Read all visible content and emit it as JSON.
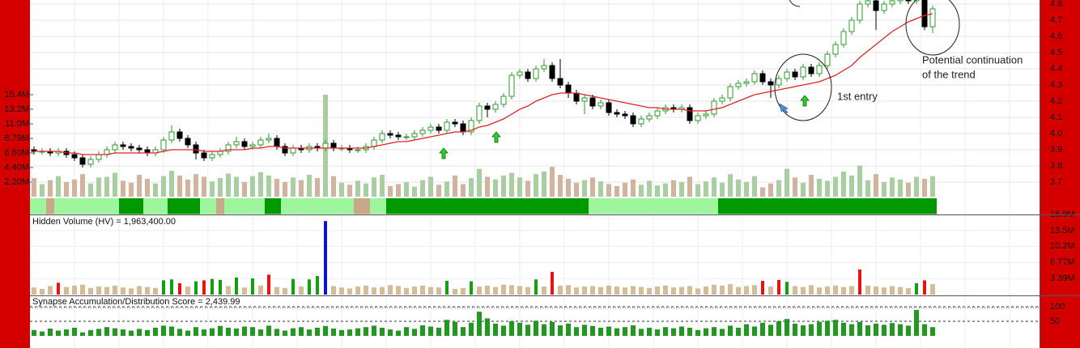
{
  "chart_data": {
    "type": "candlestick",
    "open": [
      3.9,
      3.89,
      3.89,
      3.88,
      3.89,
      3.87,
      3.85,
      3.81,
      3.84,
      3.87,
      3.9,
      3.93,
      3.92,
      3.91,
      3.9,
      3.88,
      3.9,
      3.96,
      4.01,
      3.97,
      3.93,
      3.88,
      3.85,
      3.87,
      3.89,
      3.93,
      3.95,
      3.92,
      3.93,
      3.96,
      3.97,
      3.92,
      3.88,
      3.91,
      3.9,
      3.92,
      3.91,
      3.94,
      3.91,
      3.91,
      3.9,
      3.9,
      3.92,
      3.96,
      4.0,
      3.99,
      3.98,
      3.98,
      4.0,
      4.02,
      4.04,
      4.02,
      4.07,
      4.06,
      4.01,
      4.08,
      4.17,
      4.15,
      4.18,
      4.23,
      4.36,
      4.38,
      4.34,
      4.4,
      4.42,
      4.34,
      4.3,
      4.25,
      4.2,
      4.22,
      4.17,
      4.19,
      4.13,
      4.12,
      4.11,
      4.06,
      4.09,
      4.11,
      4.14,
      4.16,
      4.15,
      4.16,
      4.08,
      4.11,
      4.12,
      4.2,
      4.22,
      4.29,
      4.31,
      4.32,
      4.37,
      4.32,
      4.3,
      4.34,
      4.38,
      4.35,
      4.41,
      4.37,
      4.42,
      4.49,
      4.55,
      4.63,
      4.7,
      4.8,
      4.82,
      4.76,
      4.8,
      4.82,
      4.83,
      4.82,
      4.83,
      4.66
    ],
    "high": [
      3.92,
      3.91,
      3.91,
      3.91,
      3.91,
      3.89,
      3.87,
      3.86,
      3.89,
      3.92,
      3.95,
      3.95,
      3.94,
      3.93,
      3.92,
      3.92,
      3.98,
      4.05,
      4.03,
      3.99,
      3.95,
      3.9,
      3.89,
      3.91,
      3.95,
      3.98,
      3.97,
      3.95,
      3.98,
      4.0,
      3.99,
      3.94,
      3.93,
      3.93,
      3.94,
      3.94,
      3.96,
      3.96,
      3.93,
      3.93,
      3.92,
      3.94,
      3.98,
      4.02,
      4.02,
      4.01,
      4.0,
      4.02,
      4.04,
      4.06,
      4.06,
      4.09,
      4.09,
      4.08,
      4.1,
      4.19,
      4.19,
      4.2,
      4.25,
      4.38,
      4.4,
      4.4,
      4.42,
      4.46,
      4.44,
      4.46,
      4.32,
      4.27,
      4.24,
      4.24,
      4.21,
      4.21,
      4.15,
      4.14,
      4.13,
      4.11,
      4.13,
      4.16,
      4.18,
      4.18,
      4.18,
      4.18,
      4.13,
      4.14,
      4.22,
      4.24,
      4.31,
      4.33,
      4.34,
      4.39,
      4.39,
      4.34,
      4.36,
      4.4,
      4.4,
      4.43,
      4.43,
      4.44,
      4.51,
      4.57,
      4.65,
      4.72,
      4.82,
      4.84,
      4.84,
      4.82,
      4.84,
      4.85,
      4.85,
      4.85,
      4.85,
      4.79
    ],
    "low": [
      3.87,
      3.87,
      3.86,
      3.86,
      3.85,
      3.83,
      3.79,
      3.79,
      3.82,
      3.85,
      3.88,
      3.9,
      3.89,
      3.88,
      3.86,
      3.86,
      3.88,
      3.94,
      3.95,
      3.91,
      3.84,
      3.83,
      3.83,
      3.85,
      3.87,
      3.91,
      3.9,
      3.9,
      3.91,
      3.94,
      3.9,
      3.86,
      3.86,
      3.88,
      3.88,
      3.89,
      3.89,
      3.89,
      3.89,
      3.88,
      3.88,
      3.88,
      3.9,
      3.94,
      3.97,
      3.96,
      3.96,
      3.96,
      3.98,
      4.0,
      4.0,
      4.0,
      4.04,
      3.99,
      3.99,
      4.06,
      4.1,
      4.13,
      4.16,
      4.21,
      4.34,
      4.32,
      4.32,
      4.38,
      4.32,
      4.28,
      4.22,
      4.18,
      4.12,
      4.15,
      4.15,
      4.11,
      4.1,
      4.09,
      4.04,
      4.04,
      4.07,
      4.09,
      4.12,
      4.13,
      4.13,
      4.06,
      4.06,
      4.09,
      4.1,
      4.18,
      4.2,
      4.27,
      4.29,
      4.3,
      4.3,
      4.22,
      4.28,
      4.32,
      4.33,
      4.33,
      4.35,
      4.35,
      4.4,
      4.47,
      4.53,
      4.61,
      4.68,
      4.78,
      4.64,
      4.74,
      4.78,
      4.8,
      4.8,
      4.8,
      4.64,
      4.62
    ],
    "close": [
      3.89,
      3.89,
      3.88,
      3.89,
      3.87,
      3.85,
      3.81,
      3.84,
      3.87,
      3.9,
      3.93,
      3.92,
      3.91,
      3.9,
      3.88,
      3.9,
      3.96,
      4.01,
      3.97,
      3.93,
      3.88,
      3.85,
      3.87,
      3.89,
      3.93,
      3.95,
      3.92,
      3.93,
      3.96,
      3.97,
      3.92,
      3.88,
      3.91,
      3.9,
      3.92,
      3.91,
      3.94,
      3.91,
      3.91,
      3.9,
      3.9,
      3.92,
      3.96,
      4.0,
      3.99,
      3.98,
      3.98,
      4.0,
      4.02,
      4.04,
      4.02,
      4.07,
      4.06,
      4.01,
      4.08,
      4.17,
      4.15,
      4.18,
      4.23,
      4.36,
      4.38,
      4.34,
      4.4,
      4.42,
      4.34,
      4.3,
      4.25,
      4.2,
      4.22,
      4.17,
      4.19,
      4.13,
      4.12,
      4.11,
      4.06,
      4.09,
      4.11,
      4.14,
      4.16,
      4.15,
      4.16,
      4.08,
      4.11,
      4.12,
      4.2,
      4.22,
      4.29,
      4.31,
      4.32,
      4.37,
      4.32,
      4.3,
      4.34,
      4.38,
      4.35,
      4.41,
      4.37,
      4.42,
      4.49,
      4.55,
      4.63,
      4.7,
      4.8,
      4.82,
      4.76,
      4.8,
      4.82,
      4.83,
      4.82,
      4.83,
      4.66,
      4.77
    ],
    "ma": [
      3.89,
      3.89,
      3.89,
      3.89,
      3.88,
      3.88,
      3.87,
      3.87,
      3.87,
      3.87,
      3.88,
      3.88,
      3.88,
      3.88,
      3.88,
      3.88,
      3.89,
      3.9,
      3.9,
      3.9,
      3.9,
      3.89,
      3.89,
      3.89,
      3.9,
      3.9,
      3.9,
      3.91,
      3.91,
      3.92,
      3.92,
      3.91,
      3.91,
      3.91,
      3.91,
      3.91,
      3.91,
      3.91,
      3.91,
      3.91,
      3.91,
      3.91,
      3.92,
      3.93,
      3.94,
      3.95,
      3.95,
      3.96,
      3.97,
      3.98,
      3.99,
      4.0,
      4.01,
      4.01,
      4.02,
      4.04,
      4.05,
      4.07,
      4.09,
      4.12,
      4.15,
      4.17,
      4.2,
      4.22,
      4.24,
      4.25,
      4.25,
      4.25,
      4.24,
      4.23,
      4.22,
      4.21,
      4.2,
      4.19,
      4.18,
      4.17,
      4.16,
      4.16,
      4.15,
      4.15,
      4.15,
      4.14,
      4.14,
      4.14,
      4.15,
      4.16,
      4.18,
      4.2,
      4.22,
      4.24,
      4.25,
      4.26,
      4.27,
      4.28,
      4.29,
      4.3,
      4.31,
      4.32,
      4.34,
      4.36,
      4.39,
      4.42,
      4.47,
      4.51,
      4.55,
      4.59,
      4.63,
      4.66,
      4.69,
      4.71,
      4.73,
      4.74
    ],
    "up_color": "#2e9a2e",
    "down_color": "#000000",
    "ma_color": "#e02424",
    "ylim": [
      3.6,
      4.825
    ],
    "yticks": [
      3.7,
      3.8,
      3.9,
      {
        "value": 4,
        "label": "4.0"
      },
      4.1,
      4.2,
      4.3,
      4.4,
      4.5,
      4.6,
      4.7,
      4.8
    ],
    "grid": true,
    "volume": {
      "values": [
        2.8,
        1.9,
        2.5,
        3.1,
        2.2,
        2.6,
        3.4,
        2.0,
        2.9,
        3.0,
        3.6,
        2.4,
        2.1,
        3.3,
        2.7,
        2.0,
        3.1,
        3.9,
        3.2,
        2.6,
        3.4,
        3.0,
        2.3,
        2.8,
        3.5,
        3.0,
        2.2,
        3.1,
        3.7,
        3.2,
        2.7,
        2.2,
        2.9,
        2.5,
        3.3,
        2.8,
        15.4,
        3.1,
        2.1,
        1.8,
        2.4,
        2.0,
        2.9,
        3.3,
        1.6,
        1.9,
        2.2,
        1.5,
        2.5,
        3.0,
        1.8,
        2.3,
        3.2,
        1.9,
        2.8,
        4.2,
        3.0,
        2.6,
        3.2,
        3.6,
        2.9,
        2.4,
        3.4,
        3.8,
        4.5,
        3.3,
        2.7,
        2.1,
        2.5,
        2.9,
        2.3,
        1.9,
        1.6,
        2.1,
        2.6,
        1.8,
        2.4,
        1.7,
        2.0,
        2.5,
        2.2,
        3.0,
        1.9,
        2.3,
        2.9,
        2.1,
        3.4,
        2.6,
        2.2,
        3.1,
        1.4,
        2.0,
        2.5,
        4.2,
        2.9,
        2.1,
        3.3,
        2.7,
        2.4,
        3.0,
        3.8,
        3.2,
        4.7,
        2.5,
        3.4,
        2.2,
        2.9,
        2.6,
        2.1,
        3.0,
        2.7,
        3.1
      ],
      "ylim": [
        0,
        29.7
      ],
      "yticks": [
        {
          "value": 2.2,
          "label": "2.20M"
        },
        {
          "value": 4.4,
          "label": "4.40M"
        },
        {
          "value": 6.6,
          "label": "6.60M"
        },
        {
          "value": 8.79,
          "label": "8.79M"
        },
        {
          "value": 11,
          "label": "11.0M"
        },
        {
          "value": 13.2,
          "label": "13.2M"
        },
        {
          "value": 15.4,
          "label": "15.4M"
        }
      ],
      "up_color": "#a9cfa0",
      "down_color": "#d2b49e"
    },
    "signal_segments": [
      {
        "start": 0,
        "end": 2,
        "color": "#9df59d"
      },
      {
        "start": 2,
        "end": 3,
        "color": "#c9a889"
      },
      {
        "start": 3,
        "end": 11,
        "color": "#9df59d"
      },
      {
        "start": 11,
        "end": 14,
        "color": "#009a00"
      },
      {
        "start": 14,
        "end": 17,
        "color": "#9df59d"
      },
      {
        "start": 17,
        "end": 21,
        "color": "#009a00"
      },
      {
        "start": 21,
        "end": 23,
        "color": "#9df59d"
      },
      {
        "start": 23,
        "end": 24,
        "color": "#c9a889"
      },
      {
        "start": 24,
        "end": 29,
        "color": "#9df59d"
      },
      {
        "start": 29,
        "end": 31,
        "color": "#009a00"
      },
      {
        "start": 31,
        "end": 40,
        "color": "#9df59d"
      },
      {
        "start": 40,
        "end": 42,
        "color": "#c9a889"
      },
      {
        "start": 42,
        "end": 44,
        "color": "#9df59d"
      },
      {
        "start": 44,
        "end": 69,
        "color": "#009a00"
      },
      {
        "start": 69,
        "end": 85,
        "color": "#9df59d"
      },
      {
        "start": 85,
        "end": 112,
        "color": "#009a00"
      }
    ],
    "hidden_volume": {
      "title": "Hidden Volume (HV) = 1,963,400.00",
      "values": [
        1.5,
        1.2,
        1.8,
        2.5,
        1.6,
        1.9,
        2.1,
        1.4,
        1.7,
        1.6,
        1.9,
        1.5,
        1.3,
        1.8,
        1.6,
        1.4,
        3.0,
        3.2,
        2.4,
        1.7,
        2.8,
        3.0,
        3.3,
        3.1,
        1.8,
        3.6,
        1.5,
        3.4,
        1.9,
        4.2,
        1.6,
        1.4,
        3.3,
        1.7,
        3.2,
        3.9,
        15.5,
        1.8,
        1.5,
        1.3,
        1.7,
        1.9,
        1.5,
        1.6,
        2.0,
        1.8,
        1.4,
        1.7,
        1.9,
        1.6,
        1.5,
        2.9,
        1.2,
        1.4,
        2.8,
        1.7,
        1.9,
        1.6,
        2.1,
        2.0,
        1.8,
        1.6,
        3.2,
        1.7,
        4.8,
        1.9,
        2.0,
        1.5,
        1.7,
        1.8,
        1.6,
        1.9,
        1.7,
        1.5,
        1.8,
        1.6,
        1.4,
        1.7,
        1.9,
        1.5,
        1.6,
        1.8,
        1.3,
        1.7,
        2.1,
        1.9,
        2.2,
        1.6,
        1.8,
        2.0,
        2.9,
        1.7,
        3.1,
        2.7,
        1.8,
        1.6,
        2.0,
        1.5,
        1.7,
        1.9,
        1.6,
        1.8,
        5.3,
        1.9,
        1.7,
        1.5,
        1.8,
        1.6,
        1.4,
        2.4,
        3.0,
        2.2
      ],
      "ylim": [
        0,
        16.9
      ],
      "yticks": [
        {
          "value": 3.39,
          "label": "3.39M"
        },
        {
          "value": 6.77,
          "label": "6.77M"
        },
        {
          "value": 10.2,
          "label": "10.2M"
        },
        {
          "value": 13.5,
          "label": "13.5M"
        },
        {
          "value": 16.9,
          "label": "16.9M"
        }
      ],
      "color": "#d4bc98",
      "highlights": [
        {
          "color": "#10a010",
          "indices": [
            16,
            17,
            20,
            22,
            23,
            25,
            27,
            32,
            34,
            35,
            51,
            54,
            62,
            93,
            109
          ]
        },
        {
          "color": "#ee1111",
          "indices": [
            3,
            18,
            21,
            29,
            64,
            90,
            92,
            102,
            110
          ]
        },
        {
          "color": "#0a14d8",
          "indices": [
            36
          ]
        }
      ]
    },
    "score": {
      "title": "Synapse Accumulation/Distribution Score = 2,439.99",
      "values": [
        20,
        15,
        25,
        18,
        22,
        28,
        12,
        20,
        24,
        30,
        26,
        22,
        18,
        24,
        20,
        28,
        35,
        32,
        24,
        18,
        30,
        22,
        26,
        34,
        28,
        25,
        32,
        30,
        22,
        35,
        24,
        18,
        26,
        30,
        22,
        28,
        34,
        25,
        20,
        22,
        26,
        30,
        35,
        28,
        22,
        18,
        30,
        24,
        36,
        32,
        28,
        55,
        48,
        30,
        45,
        83,
        60,
        42,
        35,
        50,
        45,
        38,
        52,
        40,
        48,
        36,
        42,
        30,
        38,
        34,
        28,
        32,
        26,
        30,
        36,
        24,
        28,
        22,
        30,
        26,
        32,
        28,
        20,
        26,
        30,
        24,
        35,
        28,
        40,
        32,
        45,
        38,
        50,
        58,
        42,
        36,
        40,
        48,
        52,
        55,
        45,
        40,
        48,
        36,
        42,
        38,
        44,
        40,
        35,
        89,
        40,
        30
      ],
      "ylim": [
        -40,
        100
      ],
      "yticks": [
        50,
        100
      ],
      "color": "#1f9a1f",
      "grid_style": "dashed"
    },
    "annotations": {
      "entry": "1st entry",
      "continuation": [
        "Potential continuation",
        "of the trend"
      ]
    }
  }
}
